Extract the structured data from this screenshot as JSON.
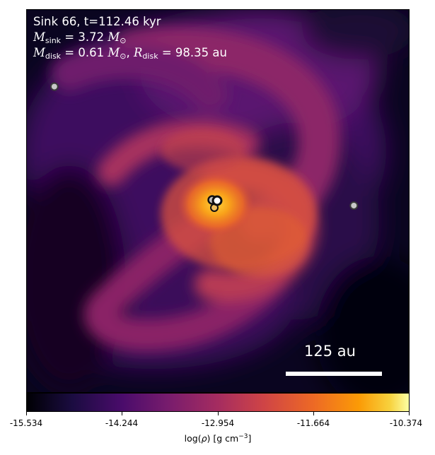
{
  "panel": {
    "sink_title": "Sink 66, t=112.46 kyr",
    "m_sink_symbol": "M",
    "m_sink_sub": "sink",
    "m_sink_value": "= 3.72",
    "m_disk_symbol": "M",
    "m_disk_sub": "disk",
    "m_disk_value": "= 0.61",
    "r_disk_symbol": "R",
    "r_disk_sub": "disk",
    "r_disk_value": "= 98.35",
    "r_disk_unit": "au",
    "solar_unit": "M",
    "solar_sub": "⊙"
  },
  "scale_bar": {
    "label": "125 au"
  },
  "colorbar": {
    "ticks": [
      "-15.534",
      "-14.244",
      "-12.954",
      "-11.664",
      "-10.374"
    ],
    "label_prefix": "log(",
    "label_rho": "ρ",
    "label_suffix": ") [g cm",
    "label_exp": "−3",
    "label_end": "]",
    "colormap": "inferno"
  },
  "sinks": [
    {
      "type": "central-bright"
    },
    {
      "type": "central-companion"
    },
    {
      "type": "outer-left"
    },
    {
      "type": "outer-right"
    }
  ]
}
